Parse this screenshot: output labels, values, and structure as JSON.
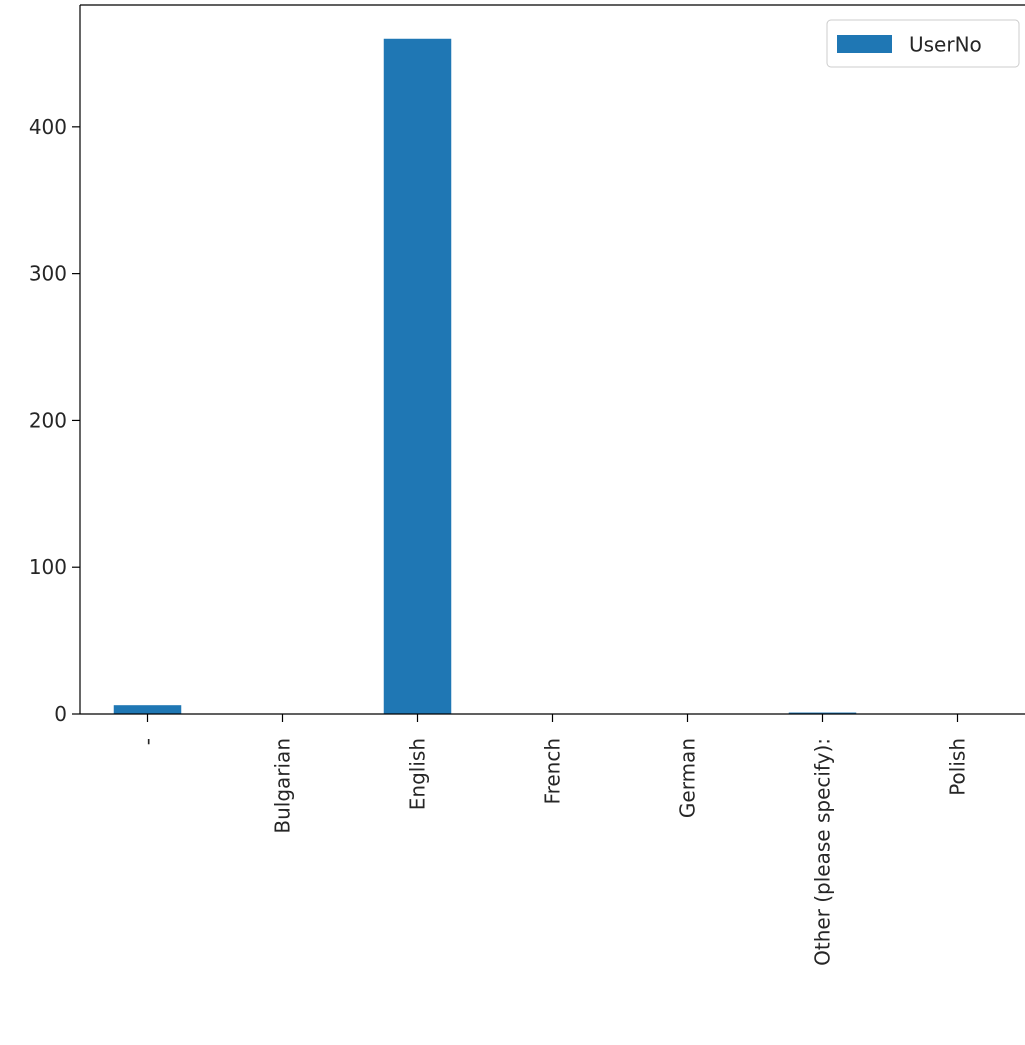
{
  "chart_data": {
    "type": "bar",
    "categories": [
      "-",
      "Bulgarian",
      "English",
      "French",
      "German",
      "Other (please specify):",
      "Polish"
    ],
    "series": [
      {
        "name": "UserNo",
        "values": [
          6,
          0,
          460,
          0,
          0,
          1,
          0
        ]
      }
    ],
    "yticks": [
      0,
      100,
      200,
      300,
      400
    ],
    "ylim": [
      0,
      483
    ],
    "grid": false,
    "legend": "top-right",
    "bar_color": "#1f77b4"
  }
}
